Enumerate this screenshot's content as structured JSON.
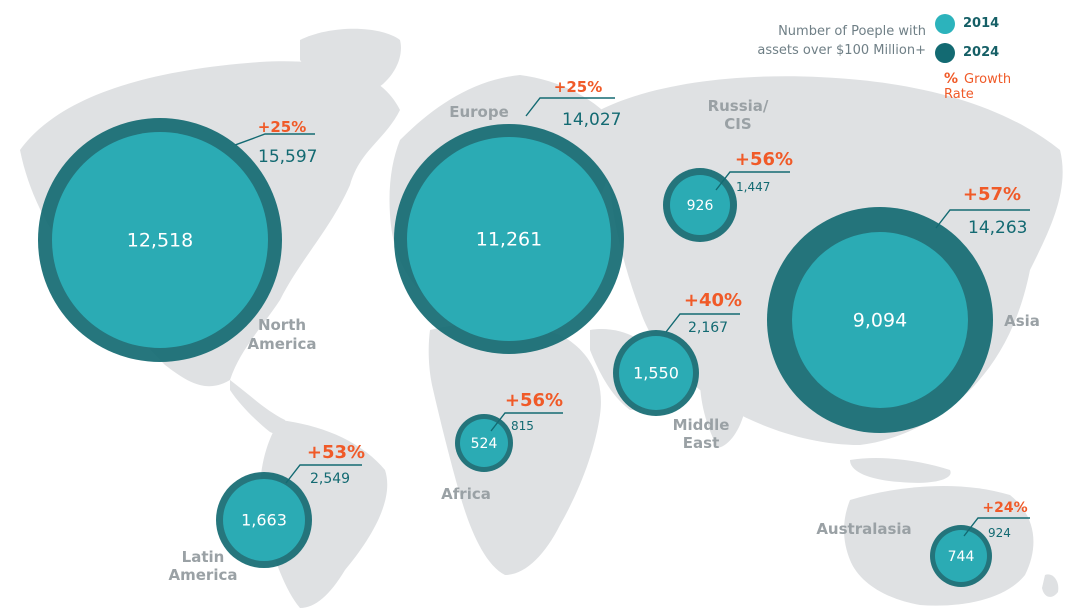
{
  "legend": {
    "title_line1": "Number of Poeple with",
    "title_line2": "assets over $100 Million+",
    "item_2014": "2014",
    "item_2024": "2024",
    "pct_symbol": "%",
    "growth_label": "Growth Rate"
  },
  "colors": {
    "c2014": "#2cb3bc",
    "c2024": "#136a72",
    "growth": "#f05a28",
    "label": "#9aa1a5",
    "land": "#dfe1e3"
  },
  "regions": [
    {
      "name": "north-america",
      "label_lines": [
        "North",
        "America"
      ],
      "v2014": "12,518",
      "v2024": "15,597",
      "growth": "+25%"
    },
    {
      "name": "europe",
      "label_lines": [
        "Europe"
      ],
      "v2014": "11,261",
      "v2024": "14,027",
      "growth": "+25%"
    },
    {
      "name": "russia-cis",
      "label_lines": [
        "Russia/",
        "CIS"
      ],
      "v2014": "926",
      "v2024": "1,447",
      "growth": "+56%"
    },
    {
      "name": "asia",
      "label_lines": [
        "Asia"
      ],
      "v2014": "9,094",
      "v2024": "14,263",
      "growth": "+57%"
    },
    {
      "name": "middle-east",
      "label_lines": [
        "Middle",
        "East"
      ],
      "v2014": "1,550",
      "v2024": "2,167",
      "growth": "+40%"
    },
    {
      "name": "africa",
      "label_lines": [
        "Africa"
      ],
      "v2014": "524",
      "v2024": "815",
      "growth": "+56%"
    },
    {
      "name": "latin-america",
      "label_lines": [
        "Latin",
        "America"
      ],
      "v2014": "1,663",
      "v2024": "2,549",
      "growth": "+53%"
    },
    {
      "name": "australasia",
      "label_lines": [
        "Australasia"
      ],
      "v2014": "744",
      "v2024": "924",
      "growth": "+24%"
    }
  ]
}
